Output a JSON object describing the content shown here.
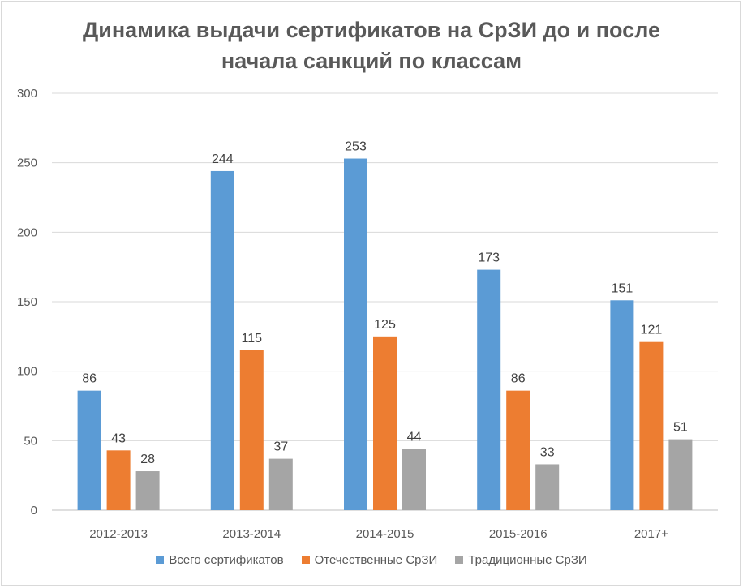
{
  "chart_data": {
    "type": "bar",
    "title_lines": [
      "Динамика выдачи сертификатов на СрЗИ до и после",
      "начала санкций по классам"
    ],
    "categories": [
      "2012-2013",
      "2013-2014",
      "2014-2015",
      "2015-2016",
      "2017+"
    ],
    "series": [
      {
        "name": "Всего сертификатов",
        "color": "#5b9bd5",
        "values": [
          86,
          244,
          253,
          173,
          151
        ]
      },
      {
        "name": "Отечественные СрЗИ",
        "color": "#ed7d31",
        "values": [
          43,
          115,
          125,
          86,
          121
        ]
      },
      {
        "name": "Традиционные СрЗИ",
        "color": "#a5a5a5",
        "values": [
          28,
          37,
          44,
          33,
          51
        ]
      }
    ],
    "ylim": [
      0,
      300
    ],
    "yticks": [
      0,
      50,
      100,
      150,
      200,
      250,
      300
    ],
    "grid": true,
    "legend_position": "bottom"
  }
}
